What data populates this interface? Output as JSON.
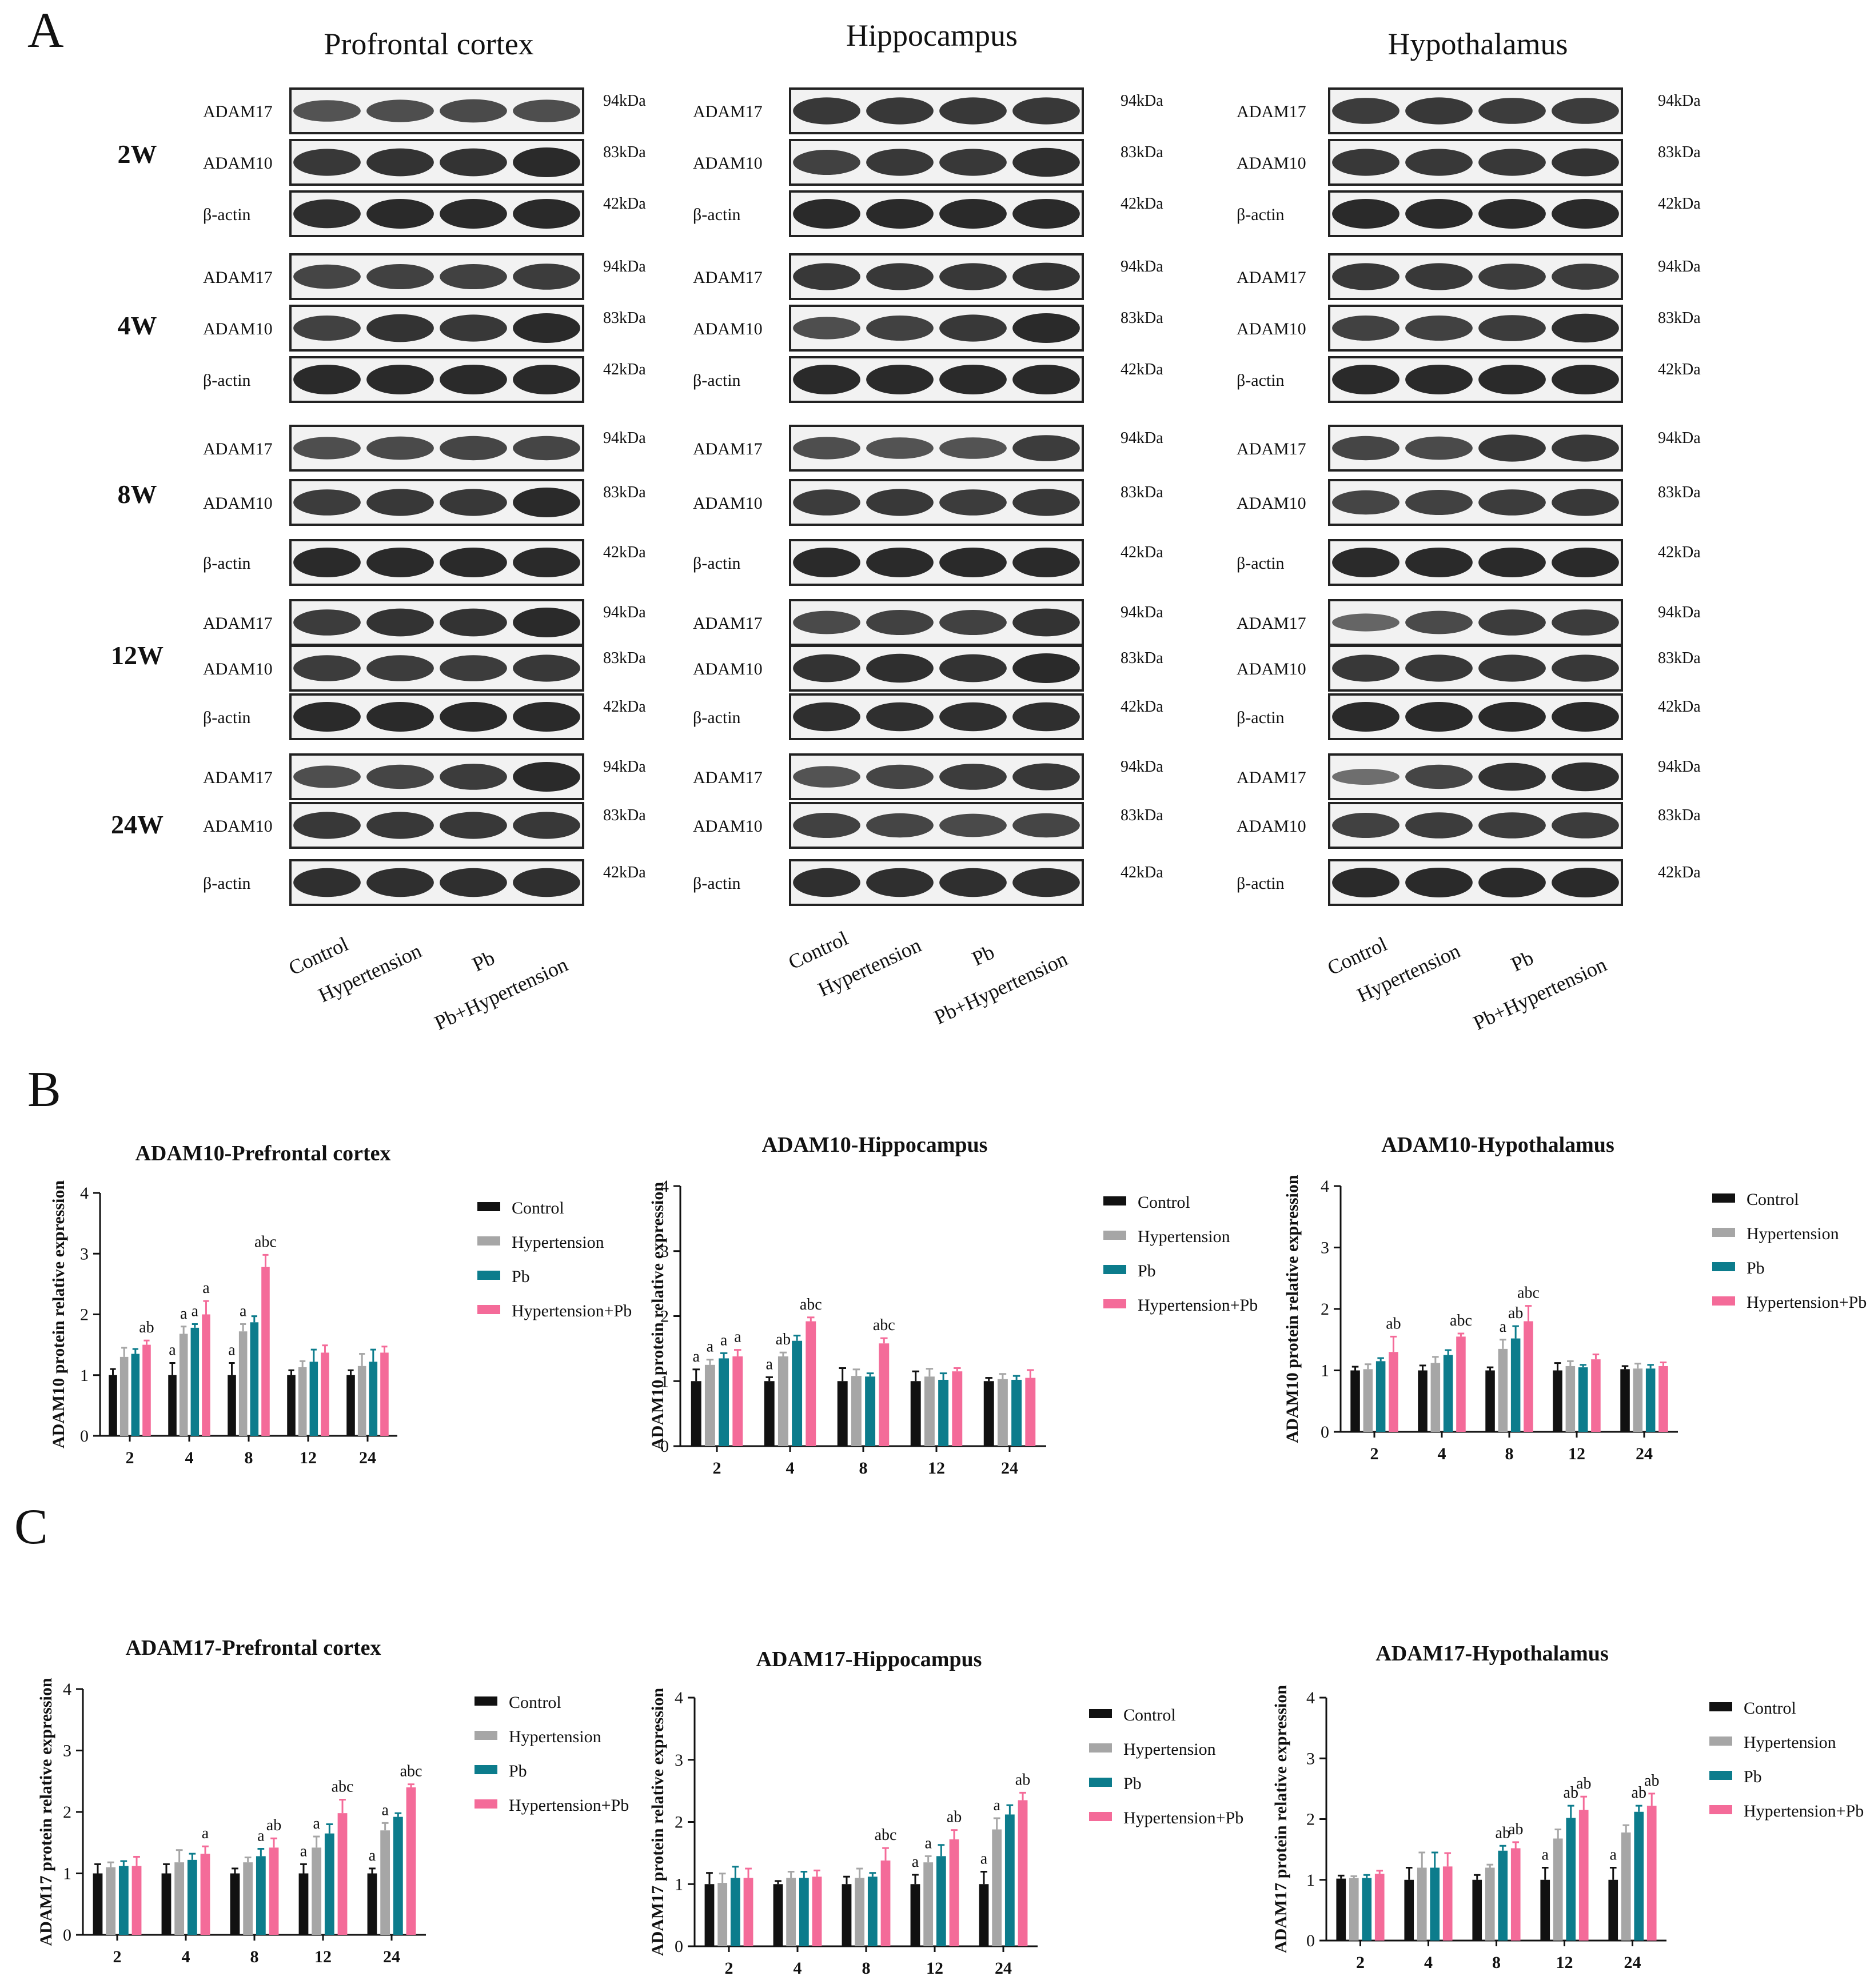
{
  "figure": {
    "panel_labels": {
      "a": "A",
      "b": "B",
      "c": "C"
    }
  },
  "western_blot": {
    "regions": [
      "Profrontal cortex",
      "Hippocampus",
      "Hypothalamus"
    ],
    "timepoints": [
      "2W",
      "4W",
      "8W",
      "12W",
      "24W"
    ],
    "proteins": [
      "ADAM17",
      "ADAM10",
      "β-actin"
    ],
    "weights": [
      "94kDa",
      "83kDa",
      "42kDa"
    ],
    "lanes": [
      "Control",
      "Hypertension",
      "Pb",
      "Pb+Hypertension"
    ],
    "band_intensity": {
      "Profrontal cortex": {
        "ADAM17": [
          [
            0.55,
            0.6,
            0.65,
            0.6
          ],
          [
            0.7,
            0.75,
            0.75,
            0.8
          ],
          [
            0.6,
            0.65,
            0.7,
            0.7
          ],
          [
            0.8,
            0.9,
            0.9,
            1.0
          ],
          [
            0.6,
            0.7,
            0.8,
            1.0
          ]
        ],
        "ADAM10": [
          [
            0.85,
            0.9,
            0.9,
            1.0
          ],
          [
            0.75,
            0.9,
            0.85,
            1.0
          ],
          [
            0.8,
            0.85,
            0.85,
            1.0
          ],
          [
            0.8,
            0.8,
            0.8,
            0.85
          ],
          [
            0.85,
            0.85,
            0.85,
            0.85
          ]
        ],
        "β-actin": [
          [
            0.95,
            1,
            1,
            1
          ],
          [
            1,
            1,
            1,
            1
          ],
          [
            1,
            1,
            1,
            1
          ],
          [
            1,
            1,
            1,
            1
          ],
          [
            0.95,
            0.95,
            0.95,
            0.95
          ]
        ]
      },
      "Hippocampus": {
        "ADAM17": [
          [
            0.85,
            0.85,
            0.85,
            0.85
          ],
          [
            0.85,
            0.85,
            0.85,
            0.9
          ],
          [
            0.6,
            0.55,
            0.55,
            0.8
          ],
          [
            0.65,
            0.75,
            0.75,
            0.9
          ],
          [
            0.55,
            0.7,
            0.8,
            0.85
          ]
        ],
        "ADAM10": [
          [
            0.75,
            0.85,
            0.85,
            0.95
          ],
          [
            0.6,
            0.75,
            0.85,
            1.0
          ],
          [
            0.8,
            0.85,
            0.8,
            0.85
          ],
          [
            0.9,
            0.95,
            0.9,
            1.0
          ],
          [
            0.75,
            0.7,
            0.65,
            0.7
          ]
        ],
        "β-actin": [
          [
            1,
            1,
            1,
            1
          ],
          [
            1,
            1,
            1,
            1
          ],
          [
            1,
            1,
            1,
            1
          ],
          [
            0.95,
            0.95,
            0.95,
            0.95
          ],
          [
            0.95,
            0.95,
            0.95,
            0.95
          ]
        ]
      },
      "Hypothalamus": {
        "ADAM17": [
          [
            0.8,
            0.85,
            0.8,
            0.8
          ],
          [
            0.85,
            0.85,
            0.8,
            0.8
          ],
          [
            0.7,
            0.65,
            0.85,
            0.85
          ],
          [
            0.35,
            0.65,
            0.8,
            0.8
          ],
          [
            0.25,
            0.7,
            0.9,
            0.95
          ]
        ],
        "ADAM10": [
          [
            0.85,
            0.85,
            0.85,
            0.9
          ],
          [
            0.75,
            0.75,
            0.8,
            0.95
          ],
          [
            0.7,
            0.75,
            0.8,
            0.85
          ],
          [
            0.85,
            0.85,
            0.85,
            0.85
          ],
          [
            0.75,
            0.8,
            0.8,
            0.8
          ]
        ],
        "β-actin": [
          [
            1,
            1,
            1,
            1
          ],
          [
            1,
            1,
            1,
            1
          ],
          [
            1,
            1,
            1,
            1
          ],
          [
            1,
            1,
            1,
            1
          ],
          [
            1,
            1,
            1,
            1
          ]
        ]
      }
    }
  },
  "chart_data": [
    {
      "type": "bar",
      "id": "b1",
      "title": "ADAM10-Prefrontal cortex",
      "ylabel": "ADAM10 protein relative expression",
      "xlabel": "",
      "categories": [
        "2",
        "4",
        "8",
        "12",
        "24"
      ],
      "ylim": [
        0,
        4
      ],
      "yticks": [
        "0",
        "1",
        "2",
        "3",
        "4"
      ],
      "legend": [
        "Control",
        "Hypertension",
        "Pb",
        "Hypertension+Pb"
      ],
      "series": [
        {
          "name": "Control",
          "values": [
            1,
            1,
            1,
            1,
            1
          ],
          "errors": [
            0.1,
            0.2,
            0.2,
            0.08,
            0.08
          ]
        },
        {
          "name": "Hypertension",
          "values": [
            1.3,
            1.68,
            1.72,
            1.13,
            1.15
          ],
          "errors": [
            0.15,
            0.12,
            0.12,
            0.1,
            0.2
          ]
        },
        {
          "name": "Pb",
          "values": [
            1.35,
            1.78,
            1.87,
            1.22,
            1.22
          ],
          "errors": [
            0.08,
            0.06,
            0.1,
            0.2,
            0.2
          ]
        },
        {
          "name": "Hypertension+Pb",
          "values": [
            1.5,
            2.0,
            2.78,
            1.37,
            1.37
          ],
          "errors": [
            0.07,
            0.22,
            0.2,
            0.12,
            0.1
          ]
        }
      ],
      "annotations": [
        [
          "",
          "",
          "",
          "ab"
        ],
        [
          "a",
          "a",
          "a",
          "a"
        ],
        [
          "a",
          "a",
          "",
          "abc"
        ],
        [
          "",
          "",
          "",
          ""
        ],
        [
          "",
          "",
          "",
          ""
        ]
      ]
    },
    {
      "type": "bar",
      "id": "b2",
      "title": "ADAM10-Hippocampus",
      "ylabel": "ADAM10 protein relative expression",
      "xlabel": "",
      "categories": [
        "2",
        "4",
        "8",
        "12",
        "24"
      ],
      "ylim": [
        0,
        4
      ],
      "yticks": [
        "0",
        "1",
        "2",
        "3",
        "4"
      ],
      "legend": [
        "Control",
        "Hypertension",
        "Pb",
        "Hypertension+Pb"
      ],
      "series": [
        {
          "name": "Control",
          "values": [
            1,
            1,
            1,
            1,
            1
          ],
          "errors": [
            0.18,
            0.06,
            0.2,
            0.15,
            0.05
          ]
        },
        {
          "name": "Hypertension",
          "values": [
            1.25,
            1.38,
            1.08,
            1.07,
            1.03
          ],
          "errors": [
            0.08,
            0.06,
            0.1,
            0.12,
            0.08
          ]
        },
        {
          "name": "Pb",
          "values": [
            1.35,
            1.62,
            1.07,
            1.02,
            1.02
          ],
          "errors": [
            0.08,
            0.08,
            0.05,
            0.1,
            0.06
          ]
        },
        {
          "name": "Hypertension+Pb",
          "values": [
            1.38,
            1.92,
            1.58,
            1.15,
            1.05
          ],
          "errors": [
            0.1,
            0.06,
            0.08,
            0.05,
            0.12
          ]
        }
      ],
      "annotations": [
        [
          "a",
          "a",
          "a",
          "a"
        ],
        [
          "a",
          "ab",
          "",
          "abc"
        ],
        [
          "",
          "",
          "",
          "abc"
        ],
        [
          "",
          "",
          "",
          ""
        ],
        [
          "",
          "",
          "",
          ""
        ]
      ]
    },
    {
      "type": "bar",
      "id": "b3",
      "title": "ADAM10-Hypothalamus",
      "ylabel": "ADAM10 protein relative expression",
      "xlabel": "",
      "categories": [
        "2",
        "4",
        "8",
        "12",
        "24"
      ],
      "ylim": [
        0,
        4
      ],
      "yticks": [
        "0",
        "1",
        "2",
        "3",
        "4"
      ],
      "legend": [
        "Control",
        "Hypertension",
        "Pb",
        "Hypertension+Pb"
      ],
      "series": [
        {
          "name": "Control",
          "values": [
            1,
            1,
            1,
            1,
            1.02
          ],
          "errors": [
            0.06,
            0.08,
            0.05,
            0.12,
            0.05
          ]
        },
        {
          "name": "Hypertension",
          "values": [
            1.02,
            1.12,
            1.35,
            1.07,
            1.03
          ],
          "errors": [
            0.08,
            0.1,
            0.15,
            0.08,
            0.08
          ]
        },
        {
          "name": "Pb",
          "values": [
            1.15,
            1.25,
            1.52,
            1.05,
            1.03
          ],
          "errors": [
            0.05,
            0.08,
            0.2,
            0.04,
            0.06
          ]
        },
        {
          "name": "Hypertension+Pb",
          "values": [
            1.3,
            1.55,
            1.8,
            1.18,
            1.07
          ],
          "errors": [
            0.25,
            0.05,
            0.25,
            0.08,
            0.06
          ]
        }
      ],
      "annotations": [
        [
          "",
          "",
          "",
          "ab"
        ],
        [
          "",
          "",
          "",
          "abc"
        ],
        [
          "",
          "a",
          "ab",
          "abc"
        ],
        [
          "",
          "",
          "",
          ""
        ],
        [
          "",
          "",
          "",
          ""
        ]
      ]
    },
    {
      "type": "bar",
      "id": "c1",
      "title": "ADAM17-Prefrontal cortex",
      "ylabel": "ADAM17 protein relative expression",
      "xlabel": "",
      "categories": [
        "2",
        "4",
        "8",
        "12",
        "24"
      ],
      "ylim": [
        0,
        4
      ],
      "yticks": [
        "0",
        "1",
        "2",
        "3",
        "4"
      ],
      "legend": [
        "Control",
        "Hypertension",
        "Pb",
        "Hypertension+Pb"
      ],
      "series": [
        {
          "name": "Control",
          "values": [
            1,
            1,
            1,
            1,
            1
          ],
          "errors": [
            0.15,
            0.15,
            0.08,
            0.15,
            0.08
          ]
        },
        {
          "name": "Hypertension",
          "values": [
            1.1,
            1.18,
            1.18,
            1.42,
            1.7
          ],
          "errors": [
            0.08,
            0.2,
            0.08,
            0.18,
            0.12
          ]
        },
        {
          "name": "Pb",
          "values": [
            1.12,
            1.22,
            1.28,
            1.65,
            1.92
          ],
          "errors": [
            0.08,
            0.1,
            0.12,
            0.15,
            0.06
          ]
        },
        {
          "name": "Hypertension+Pb",
          "values": [
            1.12,
            1.32,
            1.42,
            1.98,
            2.4
          ],
          "errors": [
            0.15,
            0.12,
            0.15,
            0.22,
            0.05
          ]
        }
      ],
      "annotations": [
        [
          "",
          "",
          "",
          ""
        ],
        [
          "",
          "",
          "",
          "a"
        ],
        [
          "",
          "",
          "a",
          "ab"
        ],
        [
          "a",
          "a",
          "",
          "abc"
        ],
        [
          "a",
          "a",
          "",
          "abc"
        ]
      ]
    },
    {
      "type": "bar",
      "id": "c2",
      "title": "ADAM17-Hippocampus",
      "ylabel": "ADAM17 protein relative expression",
      "xlabel": "",
      "categories": [
        "2",
        "4",
        "8",
        "12",
        "24"
      ],
      "ylim": [
        0,
        4
      ],
      "yticks": [
        "0",
        "1",
        "2",
        "3",
        "4"
      ],
      "legend": [
        "Control",
        "Hypertension",
        "Pb",
        "Hypertension+Pb"
      ],
      "series": [
        {
          "name": "Control",
          "values": [
            1,
            1,
            1,
            1,
            1
          ],
          "errors": [
            0.18,
            0.05,
            0.12,
            0.15,
            0.2
          ]
        },
        {
          "name": "Hypertension",
          "values": [
            1.02,
            1.1,
            1.1,
            1.35,
            1.88
          ],
          "errors": [
            0.15,
            0.1,
            0.15,
            0.1,
            0.18
          ]
        },
        {
          "name": "Pb",
          "values": [
            1.1,
            1.1,
            1.12,
            1.45,
            2.12
          ],
          "errors": [
            0.18,
            0.1,
            0.06,
            0.18,
            0.15
          ]
        },
        {
          "name": "Hypertension+Pb",
          "values": [
            1.1,
            1.12,
            1.38,
            1.72,
            2.35
          ],
          "errors": [
            0.15,
            0.1,
            0.2,
            0.15,
            0.12
          ]
        }
      ],
      "annotations": [
        [
          "",
          "",
          "",
          ""
        ],
        [
          "",
          "",
          "",
          ""
        ],
        [
          "",
          "",
          "",
          "abc"
        ],
        [
          "a",
          "a",
          "",
          "ab"
        ],
        [
          "a",
          "a",
          "",
          "ab"
        ]
      ]
    },
    {
      "type": "bar",
      "id": "c3",
      "title": "ADAM17-Hypothalamus",
      "ylabel": "ADAM17 protein relative expression",
      "xlabel": "",
      "categories": [
        "2",
        "4",
        "8",
        "12",
        "24"
      ],
      "ylim": [
        0,
        4
      ],
      "yticks": [
        "0",
        "1",
        "2",
        "3",
        "4"
      ],
      "legend": [
        "Control",
        "Hypertension",
        "Pb",
        "Hypertension+Pb"
      ],
      "series": [
        {
          "name": "Control",
          "values": [
            1.02,
            1,
            1,
            1,
            1
          ],
          "errors": [
            0.05,
            0.2,
            0.08,
            0.2,
            0.2
          ]
        },
        {
          "name": "Hypertension",
          "values": [
            1.03,
            1.2,
            1.2,
            1.68,
            1.78
          ],
          "errors": [
            0.03,
            0.25,
            0.05,
            0.15,
            0.12
          ]
        },
        {
          "name": "Pb",
          "values": [
            1.03,
            1.2,
            1.48,
            2.02,
            2.12
          ],
          "errors": [
            0.05,
            0.25,
            0.08,
            0.2,
            0.1
          ]
        },
        {
          "name": "Hypertension+Pb",
          "values": [
            1.1,
            1.22,
            1.52,
            2.15,
            2.22
          ],
          "errors": [
            0.05,
            0.22,
            0.1,
            0.22,
            0.2
          ]
        }
      ],
      "annotations": [
        [
          "",
          "",
          "",
          ""
        ],
        [
          "",
          "",
          "",
          ""
        ],
        [
          "",
          "",
          "ab",
          "ab"
        ],
        [
          "a",
          "",
          "ab",
          "ab"
        ],
        [
          "a",
          "",
          "ab",
          "ab"
        ]
      ]
    }
  ],
  "colors": {
    "control": "#111111",
    "hypertension": "#a6a6a6",
    "pb": "#0c7c8c",
    "hypertension_pb": "#f46b99"
  }
}
